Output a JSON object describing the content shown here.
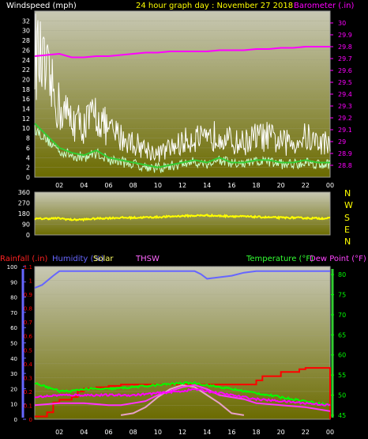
{
  "header": {
    "left": "Windspeed (mph)",
    "center": "24 hour graph day : November 27 2018",
    "right": "Barometer (.in)"
  },
  "colors": {
    "background": "#000000",
    "plot_top": "#c8c8b4",
    "plot_bottom": "#6b6b00",
    "wind_gust": "#ffffff",
    "wind_avg": "#ccffcc",
    "wind_avg_line": "#33cc33",
    "barometer": "#ff00ff",
    "direction": "#ffff00",
    "rainfall": "#ff0000",
    "humidity": "#6666ff",
    "solar": "#ffffff",
    "thsw": "#ff33ff",
    "temperature": "#00ff00",
    "dewpoint": "#ff00ff",
    "axis_text": "#ffffff"
  },
  "chart_data": [
    {
      "type": "line",
      "title": "24 hour graph day : November 27 2018",
      "x_ticks": [
        "02",
        "04",
        "06",
        "08",
        "10",
        "12",
        "14",
        "16",
        "18",
        "20",
        "22",
        "00"
      ],
      "left_axis": {
        "label": "Windspeed (mph)",
        "ylim": [
          0,
          34
        ],
        "ticks": [
          "0",
          "2",
          "4",
          "6",
          "8",
          "10",
          "12",
          "14",
          "16",
          "18",
          "20",
          "22",
          "24",
          "26",
          "28",
          "30",
          "32"
        ]
      },
      "right_axis": {
        "label": "Barometer (.in)",
        "ylim": [
          28.7,
          30.1
        ],
        "ticks": [
          "28.8",
          "28.9",
          "29",
          "29.1",
          "29.2",
          "29.3",
          "29.4",
          "29.5",
          "29.6",
          "29.7",
          "29.8",
          "29.9",
          "30"
        ]
      },
      "series": [
        {
          "name": "Windspeed (mph)",
          "axis": "left",
          "x": [
            0,
            1,
            2,
            3,
            4,
            5,
            6,
            7,
            8,
            9,
            10,
            11,
            12,
            13,
            14,
            15,
            16,
            17,
            18,
            19,
            20,
            21,
            22,
            23,
            24
          ],
          "values": [
            22,
            17,
            12,
            10,
            9,
            11,
            8,
            7,
            6,
            5,
            4,
            5,
            6,
            7,
            6,
            8,
            6,
            6,
            7,
            7,
            6,
            6,
            7,
            6,
            6
          ]
        },
        {
          "name": "Barometer (.in)",
          "axis": "right",
          "x": [
            0,
            1,
            2,
            3,
            4,
            5,
            6,
            7,
            8,
            9,
            10,
            11,
            12,
            13,
            14,
            15,
            16,
            17,
            18,
            19,
            20,
            21,
            22,
            23,
            24
          ],
          "values": [
            29.72,
            29.73,
            29.74,
            29.71,
            29.71,
            29.72,
            29.72,
            29.73,
            29.74,
            29.75,
            29.75,
            29.76,
            29.76,
            29.76,
            29.76,
            29.77,
            29.77,
            29.77,
            29.78,
            29.78,
            29.79,
            29.79,
            29.8,
            29.8,
            29.8
          ]
        }
      ]
    },
    {
      "type": "line",
      "left_axis": {
        "ylim": [
          0,
          360
        ],
        "ticks": [
          "0",
          "90",
          "180",
          "270",
          "360"
        ]
      },
      "right_labels": [
        "N",
        "W",
        "S",
        "E",
        "N"
      ],
      "series": [
        {
          "name": "Wind direction",
          "axis": "left",
          "x": [
            0,
            1,
            2,
            3,
            4,
            5,
            6,
            7,
            8,
            9,
            10,
            11,
            12,
            13,
            14,
            15,
            16,
            17,
            18,
            19,
            20,
            21,
            22,
            23,
            24
          ],
          "values": [
            135,
            138,
            140,
            128,
            130,
            138,
            142,
            145,
            145,
            148,
            150,
            155,
            160,
            162,
            165,
            160,
            158,
            155,
            152,
            148,
            145,
            145,
            142,
            140,
            140
          ]
        }
      ]
    },
    {
      "type": "line",
      "x_ticks": [
        "02",
        "04",
        "06",
        "08",
        "10",
        "12",
        "14",
        "16",
        "18",
        "20",
        "22",
        "00"
      ],
      "legend": [
        "Rainfall (.in)",
        "Humidity (%)",
        "Solar",
        "THSW",
        "Temperature (°F)",
        "Dew Point (°F)"
      ],
      "humidity_axis": {
        "ylim": [
          0,
          100
        ],
        "ticks": [
          "0",
          "10",
          "20",
          "30",
          "40",
          "50",
          "60",
          "70",
          "80",
          "90",
          "100"
        ]
      },
      "rain_axis": {
        "ylim": [
          0,
          1.1
        ],
        "ticks": [
          "0",
          "0.1",
          "0.2",
          "0.3",
          "0.4",
          "0.5",
          "0.6",
          "0.7",
          "0.8",
          "0.9",
          "1",
          "1.1"
        ]
      },
      "temp_axis": {
        "ylim": [
          44,
          82
        ],
        "ticks": [
          "45",
          "50",
          "55",
          "60",
          "65",
          "70",
          "75",
          "80"
        ]
      },
      "series": [
        {
          "name": "Humidity (%)",
          "axis": "humidity",
          "x": [
            0,
            0.6,
            1.5,
            2,
            3,
            4,
            6,
            8,
            10,
            12,
            13,
            13.5,
            14,
            15,
            16,
            17,
            18,
            20,
            22,
            24
          ],
          "values": [
            86,
            88,
            94,
            97,
            97,
            97,
            97,
            97,
            97,
            97,
            97,
            95,
            92,
            93,
            94,
            96,
            97,
            97,
            97,
            97
          ]
        },
        {
          "name": "Rainfall (.in)",
          "axis": "rain",
          "x": [
            0,
            1,
            1.5,
            2,
            3,
            3.5,
            4,
            5,
            6,
            7,
            8,
            10,
            12,
            14,
            16,
            18,
            18.5,
            20,
            21.5,
            22,
            24,
            24
          ],
          "values": [
            0.02,
            0.05,
            0.12,
            0.14,
            0.16,
            0.2,
            0.22,
            0.23,
            0.24,
            0.25,
            0.25,
            0.25,
            0.25,
            0.25,
            0.25,
            0.28,
            0.31,
            0.34,
            0.36,
            0.37,
            0.37,
            0
          ]
        },
        {
          "name": "Solar",
          "axis": "temp",
          "x": [
            7,
            8,
            9,
            10,
            11,
            12,
            13,
            14,
            15,
            16,
            17
          ],
          "values": [
            45,
            45.5,
            47,
            49.5,
            51.5,
            52.5,
            52,
            50,
            48,
            45.5,
            45
          ]
        },
        {
          "name": "THSW",
          "axis": "temp",
          "x": [
            0,
            2,
            4,
            6,
            7,
            8,
            9,
            10,
            11,
            12,
            13,
            14,
            15,
            16,
            17,
            18,
            20,
            22,
            24
          ],
          "values": [
            47.5,
            48,
            48,
            47.5,
            47.5,
            48,
            48.5,
            50,
            51,
            52,
            52.5,
            51.5,
            50,
            49.5,
            49,
            48,
            47.5,
            47,
            46
          ]
        },
        {
          "name": "Temperature (°F)",
          "axis": "temp",
          "x": [
            0,
            1,
            2,
            3,
            4,
            5,
            6,
            8,
            10,
            12,
            13,
            14,
            15,
            16,
            17,
            18,
            19,
            20,
            21,
            22,
            23,
            24
          ],
          "values": [
            53,
            52,
            51,
            51,
            51.5,
            51.5,
            51.5,
            52,
            52.5,
            53,
            53,
            52.5,
            52,
            51.5,
            51,
            50.5,
            50,
            49.5,
            49,
            48.5,
            48,
            47.5
          ]
        },
        {
          "name": "Dew Point (°F)",
          "axis": "temp",
          "x": [
            0,
            2,
            4,
            6,
            8,
            10,
            12,
            13,
            14,
            15,
            16,
            18,
            20,
            22,
            24
          ],
          "values": [
            49.5,
            50,
            50,
            50,
            50,
            50.5,
            51,
            51.5,
            51,
            50.5,
            50,
            49,
            48.5,
            48,
            47.5
          ]
        }
      ]
    }
  ]
}
